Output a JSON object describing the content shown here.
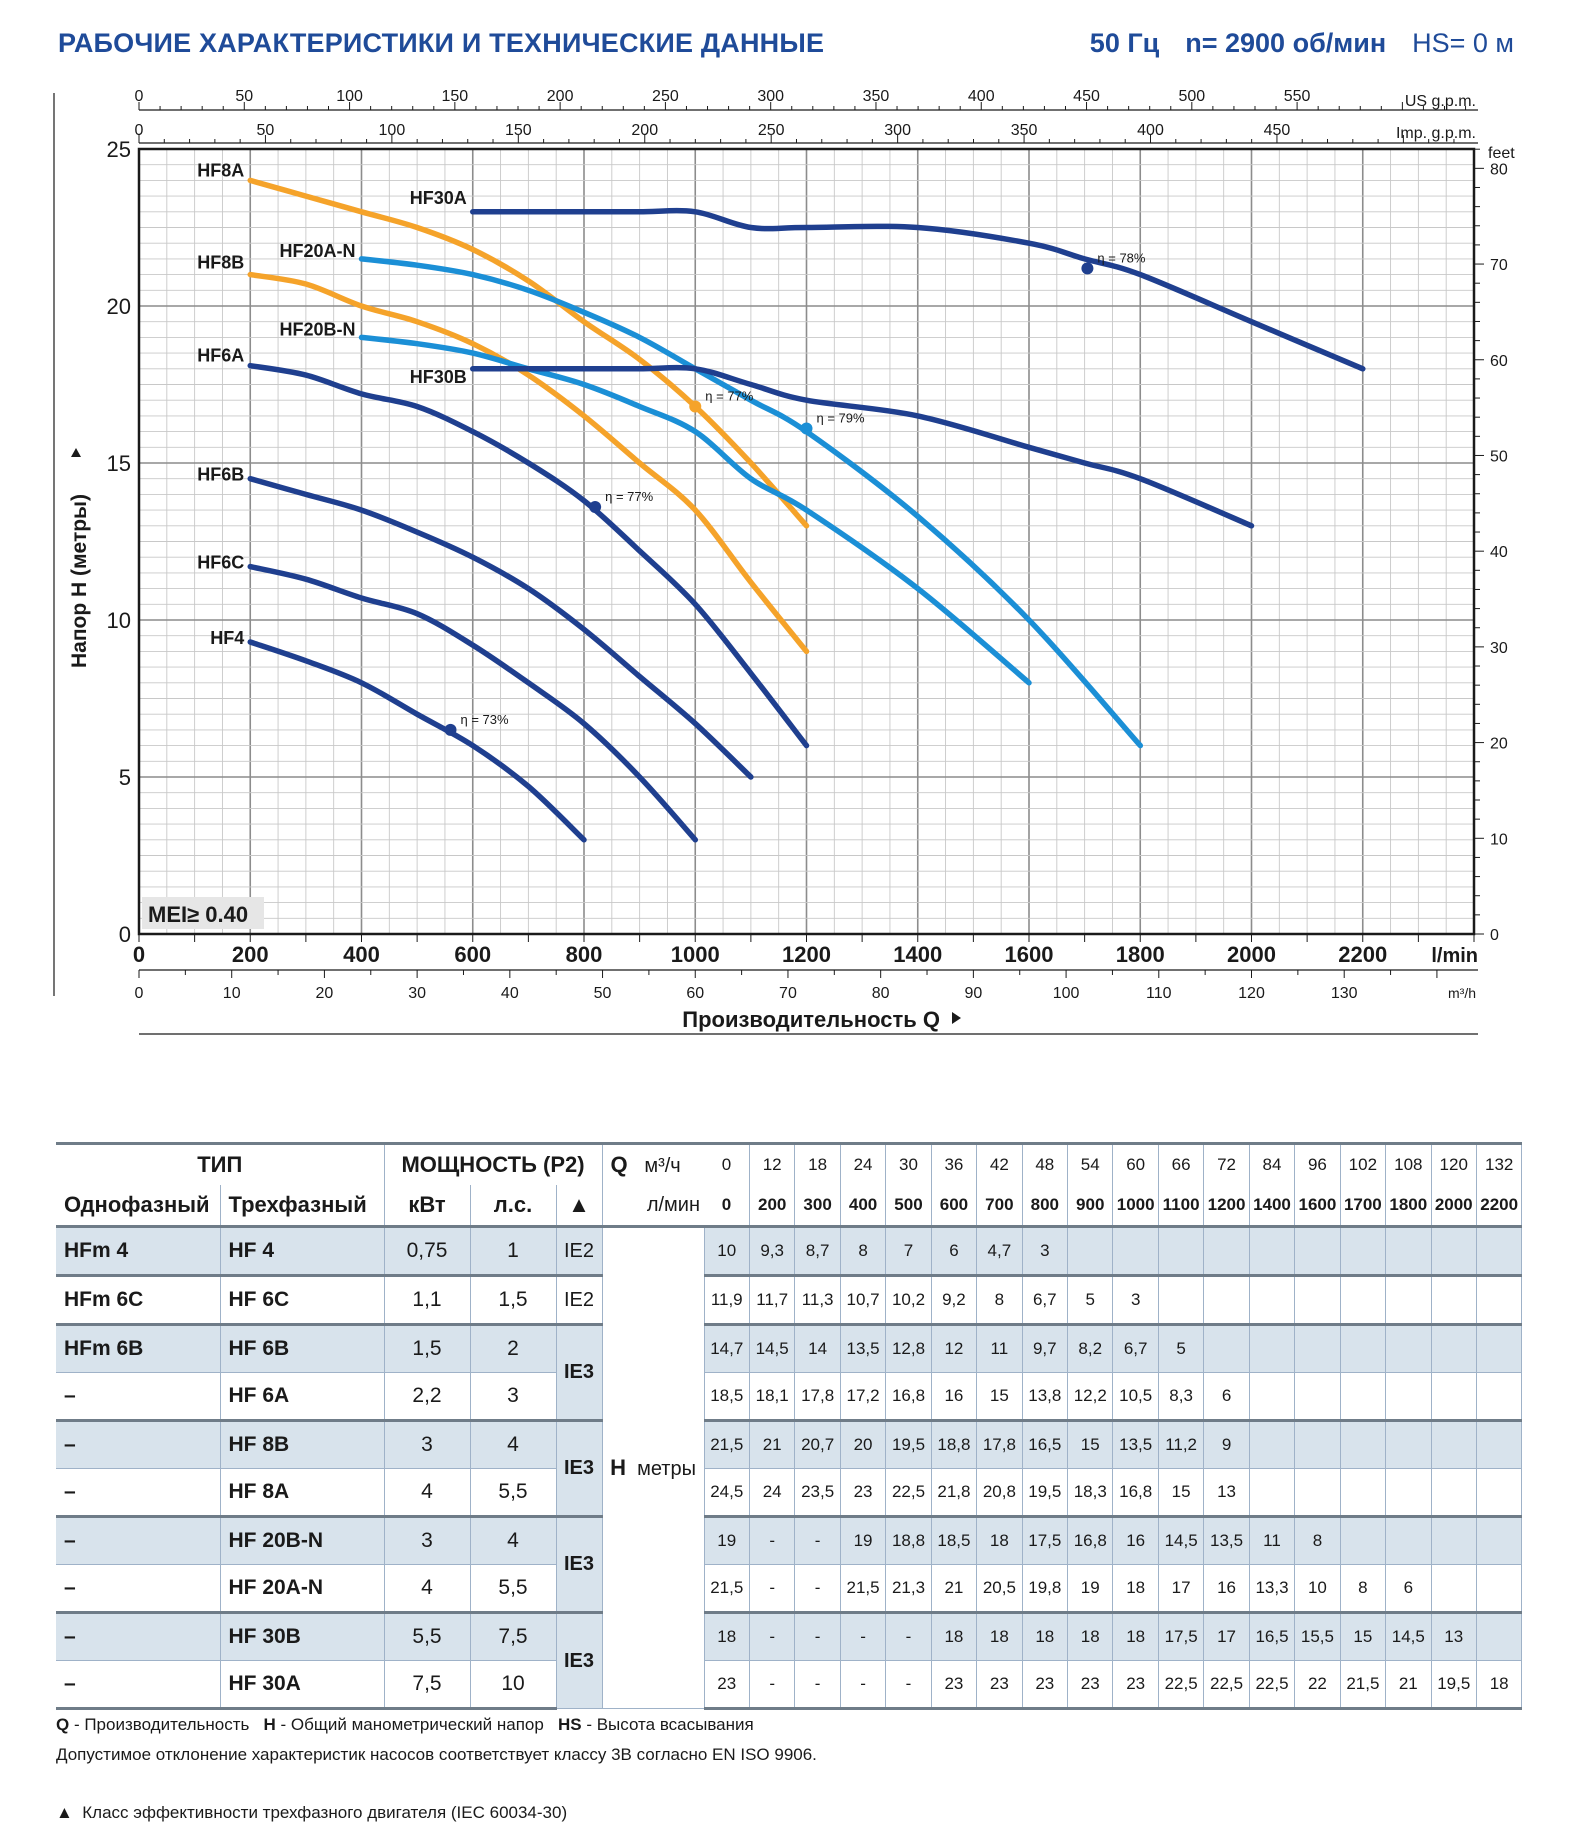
{
  "header": {
    "title": "РАБОЧИЕ ХАРАКТЕРИСТИКИ И ТЕХНИЧЕСКИЕ ДАННЫЕ",
    "freq": "50 Гц",
    "speed": "n= 2900 об/мин",
    "hs": "HS= 0 м"
  },
  "colors": {
    "dark": "#1f3f8f",
    "light": "#1b8fd6",
    "orange": "#f5a32a",
    "title": "#1f4b99",
    "grid": "#b4b4b4",
    "shade": "#d8e3ec"
  },
  "chart_data": {
    "type": "line",
    "ylabel": "Напор H (метры)",
    "xlabel": "Производительность Q",
    "xlim": [
      0,
      2400
    ],
    "ylim": [
      0,
      25
    ],
    "grid": true,
    "badge": "MEI≥ 0.40",
    "axes": {
      "lpm": {
        "unit": "l/min",
        "ticks": [
          0,
          200,
          400,
          600,
          800,
          1000,
          1200,
          1400,
          1600,
          1800,
          2000,
          2200
        ]
      },
      "m3h": {
        "unit": "m³/h",
        "ticks": [
          0,
          10,
          20,
          30,
          40,
          50,
          60,
          70,
          80,
          90,
          100,
          110,
          120,
          130
        ]
      },
      "us_gpm": {
        "unit": "US g.p.m.",
        "ticks": [
          0,
          50,
          100,
          150,
          200,
          250,
          300,
          350,
          400,
          450,
          500,
          550
        ]
      },
      "imp_gpm": {
        "unit": "Imp. g.p.m.",
        "ticks": [
          0,
          50,
          100,
          150,
          200,
          250,
          300,
          350,
          400,
          450
        ]
      },
      "feet": {
        "unit": "feet",
        "ticks": [
          0,
          10,
          20,
          30,
          40,
          50,
          60,
          70,
          80
        ]
      },
      "metres": {
        "ticks": [
          0,
          5,
          10,
          15,
          20,
          25
        ]
      }
    },
    "series": [
      {
        "name": "HF4",
        "color": "dark",
        "x": [
          200,
          300,
          400,
          500,
          600,
          700,
          800
        ],
        "y": [
          9.3,
          8.7,
          8,
          7,
          6,
          4.7,
          3
        ],
        "eff": {
          "x": 560,
          "y": 6.5,
          "label": "η = 73%"
        }
      },
      {
        "name": "HF6C",
        "color": "dark",
        "x": [
          200,
          300,
          400,
          500,
          600,
          700,
          800,
          900,
          1000
        ],
        "y": [
          11.7,
          11.3,
          10.7,
          10.2,
          9.2,
          8,
          6.7,
          5,
          3
        ]
      },
      {
        "name": "HF6B",
        "color": "dark",
        "x": [
          200,
          300,
          400,
          500,
          600,
          700,
          800,
          900,
          1000,
          1100
        ],
        "y": [
          14.5,
          14,
          13.5,
          12.8,
          12,
          11,
          9.7,
          8.2,
          6.7,
          5
        ]
      },
      {
        "name": "HF6A",
        "color": "dark",
        "x": [
          200,
          300,
          400,
          500,
          600,
          700,
          800,
          900,
          1000,
          1100,
          1200
        ],
        "y": [
          18.1,
          17.8,
          17.2,
          16.8,
          16,
          15,
          13.8,
          12.2,
          10.5,
          8.3,
          6
        ],
        "eff": {
          "x": 820,
          "y": 13.6,
          "label": "η = 77%"
        }
      },
      {
        "name": "HF8B",
        "color": "orange",
        "x": [
          200,
          300,
          400,
          500,
          600,
          700,
          800,
          900,
          1000,
          1100,
          1200
        ],
        "y": [
          21,
          20.7,
          20,
          19.5,
          18.8,
          17.8,
          16.5,
          15,
          13.5,
          11.2,
          9
        ]
      },
      {
        "name": "HF8A",
        "color": "orange",
        "x": [
          200,
          300,
          400,
          500,
          600,
          700,
          800,
          900,
          1000,
          1100,
          1200
        ],
        "y": [
          24,
          23.5,
          23,
          22.5,
          21.8,
          20.8,
          19.5,
          18.3,
          16.8,
          15,
          13
        ],
        "eff": {
          "x": 1000,
          "y": 16.8,
          "label": "η = 77%"
        }
      },
      {
        "name": "HF20B-N",
        "color": "light",
        "x": [
          400,
          500,
          600,
          700,
          800,
          900,
          1000,
          1100,
          1200,
          1400,
          1600
        ],
        "y": [
          19,
          18.8,
          18.5,
          18,
          17.5,
          16.8,
          16,
          14.5,
          13.5,
          11,
          8
        ]
      },
      {
        "name": "HF20A-N",
        "color": "light",
        "x": [
          400,
          500,
          600,
          700,
          800,
          900,
          1000,
          1100,
          1200,
          1400,
          1600,
          1800
        ],
        "y": [
          21.5,
          21.3,
          21,
          20.5,
          19.8,
          19,
          18,
          17,
          16,
          13.3,
          10,
          6
        ],
        "eff": {
          "x": 1200,
          "y": 16.1,
          "label": "η = 79%"
        }
      },
      {
        "name": "HF30B",
        "color": "dark",
        "x": [
          600,
          700,
          800,
          900,
          1000,
          1100,
          1200,
          1400,
          1600,
          1700,
          1800,
          2000
        ],
        "y": [
          18,
          18,
          18,
          18,
          18,
          17.5,
          17,
          16.5,
          15.5,
          15,
          14.5,
          13
        ]
      },
      {
        "name": "HF30A",
        "color": "dark",
        "x": [
          600,
          700,
          800,
          900,
          1000,
          1100,
          1200,
          1400,
          1600,
          1700,
          1800,
          2000,
          2200
        ],
        "y": [
          23,
          23,
          23,
          23,
          23,
          22.5,
          22.5,
          22.5,
          22,
          21.5,
          21,
          19.5,
          18
        ],
        "eff": {
          "x": 1705,
          "y": 21.2,
          "label": "η = 78%"
        }
      }
    ]
  },
  "table": {
    "col_type": "ТИП",
    "col_single": "Однофазный",
    "col_three": "Трехфазный",
    "col_power": "МОЩНОСТЬ (P2)",
    "col_kw": "кВт",
    "col_hp": "л.с.",
    "col_tri": "▲",
    "q_label": "Q",
    "q_unit_m3h": "м³/ч",
    "q_unit_lmin": "л/мин",
    "h_label": "H",
    "h_unit": "метры",
    "q_m3h": [
      "0",
      "12",
      "18",
      "24",
      "30",
      "36",
      "42",
      "48",
      "54",
      "60",
      "66",
      "72",
      "84",
      "96",
      "102",
      "108",
      "120",
      "132"
    ],
    "q_lmin": [
      "0",
      "200",
      "300",
      "400",
      "500",
      "600",
      "700",
      "800",
      "900",
      "1000",
      "1100",
      "1200",
      "1400",
      "1600",
      "1700",
      "1800",
      "2000",
      "2200"
    ],
    "rows": [
      {
        "single": "HFm 4",
        "three": "HF 4",
        "kw": "0,75",
        "hp": "1",
        "ie": "IE2",
        "h": [
          "10",
          "9,3",
          "8,7",
          "8",
          "7",
          "6",
          "4,7",
          "3",
          "",
          "",
          "",
          "",
          "",
          "",
          "",
          "",
          "",
          ""
        ]
      },
      {
        "single": "HFm 6C",
        "three": "HF 6C",
        "kw": "1,1",
        "hp": "1,5",
        "ie": "IE2",
        "h": [
          "11,9",
          "11,7",
          "11,3",
          "10,7",
          "10,2",
          "9,2",
          "8",
          "6,7",
          "5",
          "3",
          "",
          "",
          "",
          "",
          "",
          "",
          "",
          ""
        ]
      },
      {
        "single": "HFm 6B",
        "three": "HF 6B",
        "kw": "1,5",
        "hp": "2",
        "ie": "IE3",
        "h": [
          "14,7",
          "14,5",
          "14",
          "13,5",
          "12,8",
          "12",
          "11",
          "9,7",
          "8,2",
          "6,7",
          "5",
          "",
          "",
          "",
          "",
          "",
          "",
          ""
        ]
      },
      {
        "single": "–",
        "three": "HF 6A",
        "kw": "2,2",
        "hp": "3",
        "ie": "",
        "h": [
          "18,5",
          "18,1",
          "17,8",
          "17,2",
          "16,8",
          "16",
          "15",
          "13,8",
          "12,2",
          "10,5",
          "8,3",
          "6",
          "",
          "",
          "",
          "",
          "",
          ""
        ]
      },
      {
        "single": "–",
        "three": "HF 8B",
        "kw": "3",
        "hp": "4",
        "ie": "IE3",
        "h": [
          "21,5",
          "21",
          "20,7",
          "20",
          "19,5",
          "18,8",
          "17,8",
          "16,5",
          "15",
          "13,5",
          "11,2",
          "9",
          "",
          "",
          "",
          "",
          "",
          ""
        ]
      },
      {
        "single": "–",
        "three": "HF 8A",
        "kw": "4",
        "hp": "5,5",
        "ie": "",
        "h": [
          "24,5",
          "24",
          "23,5",
          "23",
          "22,5",
          "21,8",
          "20,8",
          "19,5",
          "18,3",
          "16,8",
          "15",
          "13",
          "",
          "",
          "",
          "",
          "",
          ""
        ]
      },
      {
        "single": "–",
        "three": "HF 20B-N",
        "kw": "3",
        "hp": "4",
        "ie": "IE3",
        "h": [
          "19",
          "-",
          "-",
          "19",
          "18,8",
          "18,5",
          "18",
          "17,5",
          "16,8",
          "16",
          "14,5",
          "13,5",
          "11",
          "8",
          "",
          "",
          "",
          ""
        ]
      },
      {
        "single": "–",
        "three": "HF 20A-N",
        "kw": "4",
        "hp": "5,5",
        "ie": "",
        "h": [
          "21,5",
          "-",
          "-",
          "21,5",
          "21,3",
          "21",
          "20,5",
          "19,8",
          "19",
          "18",
          "17",
          "16",
          "13,3",
          "10",
          "8",
          "6",
          "",
          ""
        ]
      },
      {
        "single": "–",
        "three": "HF 30B",
        "kw": "5,5",
        "hp": "7,5",
        "ie": "IE3",
        "h": [
          "18",
          "-",
          "-",
          "-",
          "-",
          "18",
          "18",
          "18",
          "18",
          "18",
          "17,5",
          "17",
          "16,5",
          "15,5",
          "15",
          "14,5",
          "13",
          ""
        ]
      },
      {
        "single": "–",
        "three": "HF 30A",
        "kw": "7,5",
        "hp": "10",
        "ie": "",
        "h": [
          "23",
          "-",
          "-",
          "-",
          "-",
          "23",
          "23",
          "23",
          "23",
          "23",
          "22,5",
          "22,5",
          "22,5",
          "22",
          "21,5",
          "21",
          "19,5",
          "18"
        ]
      }
    ]
  },
  "notes": {
    "q_abbr": "Q",
    "q_text": " - Производительность",
    "h_abbr": "H",
    "h_text": " - Общий манометрический напор",
    "hs_abbr": "HS",
    "hs_text": " - Высота всасывания",
    "tolerance": "Допустимое отклонение характеристик насосов соответствует классу 3B согласно EN ISO 9906.",
    "ie_marker": "▲",
    "ie_text": "Класс эффективности трехфазного двигателя (IEC 60034-30)"
  }
}
